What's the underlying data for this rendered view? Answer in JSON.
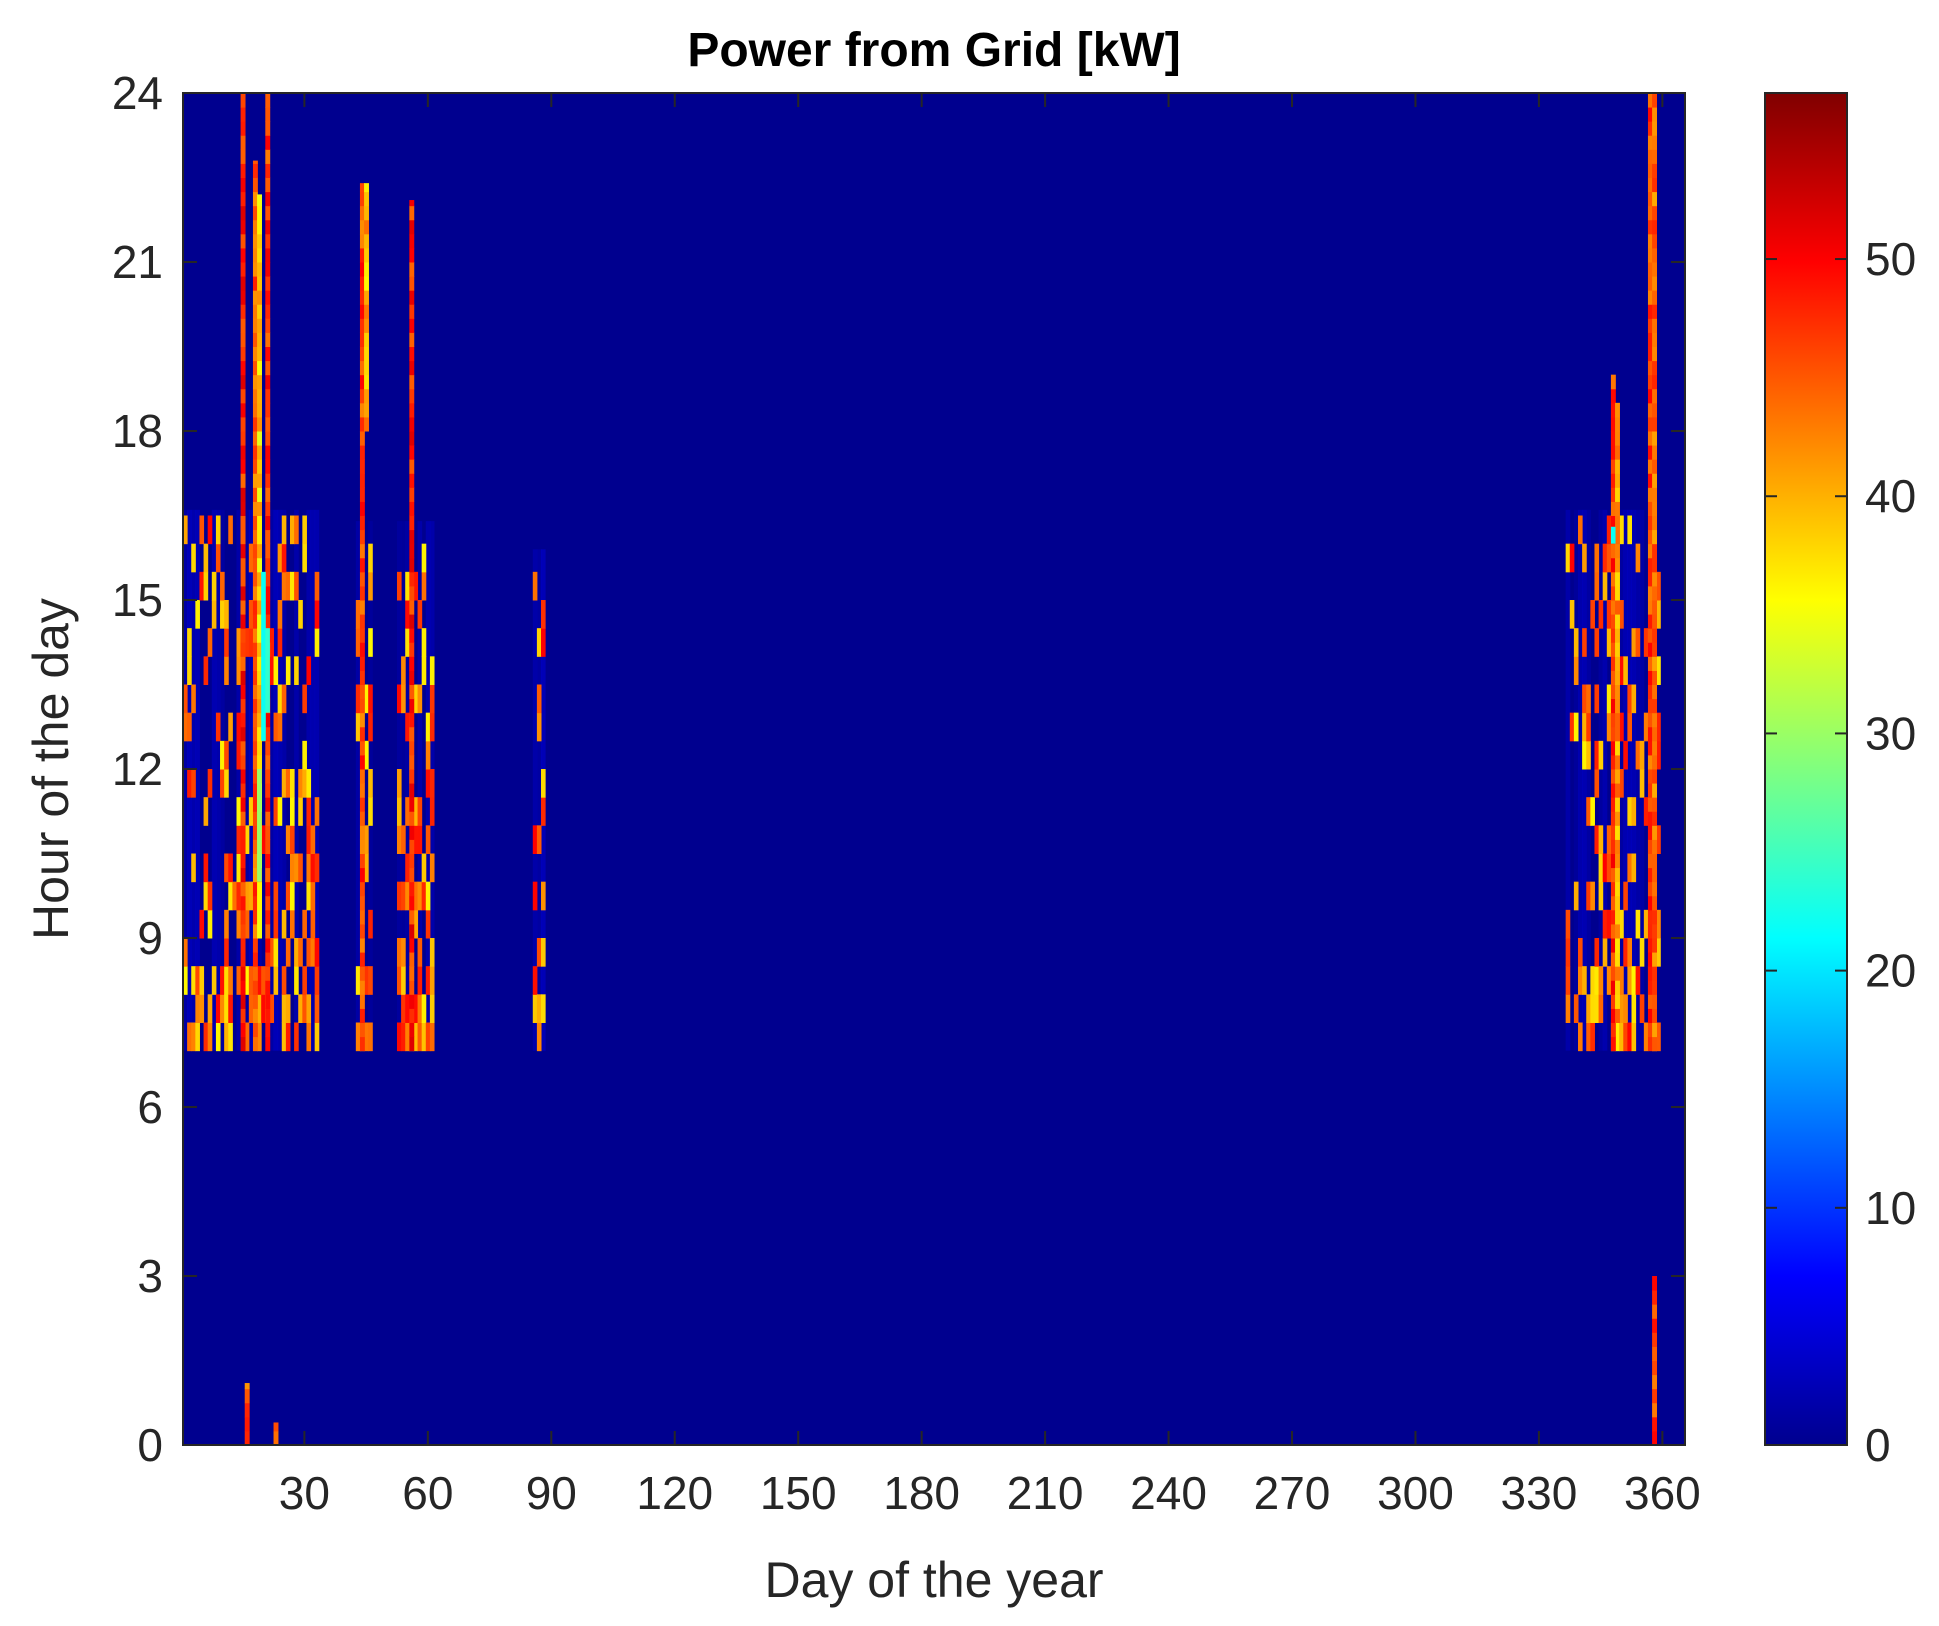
{
  "chart_data": {
    "type": "heatmap",
    "title": "Power from Grid [kW]",
    "xlabel": "Day of the year",
    "ylabel": "Hour of the day",
    "xlim": [
      1,
      365
    ],
    "ylim": [
      0,
      24
    ],
    "xticks": [
      30,
      60,
      90,
      120,
      150,
      180,
      210,
      240,
      270,
      300,
      330,
      360
    ],
    "yticks": [
      0,
      3,
      6,
      9,
      12,
      15,
      18,
      21,
      24
    ],
    "colorbar": {
      "colormap": "jet",
      "range": [
        0,
        57
      ],
      "ticks": [
        0,
        10,
        20,
        30,
        40,
        50
      ]
    },
    "background_value": 0,
    "full_columns": [
      {
        "day": 15,
        "hour_start": 7,
        "hour_end": 24,
        "value": 48
      },
      {
        "day": 21,
        "hour_start": 7,
        "hour_end": 24,
        "value": 47
      },
      {
        "day": 357,
        "hour_start": 7,
        "hour_end": 24,
        "value": 46
      },
      {
        "day": 358,
        "hour_start": 7,
        "hour_end": 24,
        "value": 44
      }
    ],
    "tall_columns": [
      {
        "day": 18,
        "hour_start": 7,
        "hour_end": 22.8,
        "value": 45
      },
      {
        "day": 19,
        "hour_start": 9,
        "hour_end": 22.2,
        "value": 38
      },
      {
        "day": 44,
        "hour_start": 7,
        "hour_end": 22.4,
        "value": 46
      },
      {
        "day": 45,
        "hour_start": 18,
        "hour_end": 22.4,
        "value": 40
      },
      {
        "day": 56,
        "hour_start": 7,
        "hour_end": 22.1,
        "value": 48
      },
      {
        "day": 348,
        "hour_start": 7,
        "hour_end": 19,
        "value": 47
      },
      {
        "day": 349,
        "hour_start": 7.5,
        "hour_end": 18.5,
        "value": 41
      }
    ],
    "clusters": [
      {
        "day_start": 1,
        "day_end": 33,
        "hour_start": 7,
        "hour_end": 16.2,
        "density": 0.3
      },
      {
        "day_start": 43,
        "day_end": 46,
        "hour_start": 7,
        "hour_end": 16,
        "density": 0.4
      },
      {
        "day_start": 53,
        "day_end": 61,
        "hour_start": 7,
        "hour_end": 16,
        "density": 0.35
      },
      {
        "day_start": 86,
        "day_end": 88,
        "hour_start": 7,
        "hour_end": 15.5,
        "density": 0.3
      },
      {
        "day_start": 337,
        "day_end": 359,
        "hour_start": 7,
        "hour_end": 16.2,
        "density": 0.3
      }
    ],
    "night_spots": [
      {
        "day": 16,
        "hour_start": 0,
        "hour_end": 1.1,
        "value": 45
      },
      {
        "day": 23,
        "hour_start": 0,
        "hour_end": 0.4,
        "value": 42
      },
      {
        "day": 358,
        "hour_start": 0,
        "hour_end": 3,
        "value": 46
      }
    ]
  }
}
